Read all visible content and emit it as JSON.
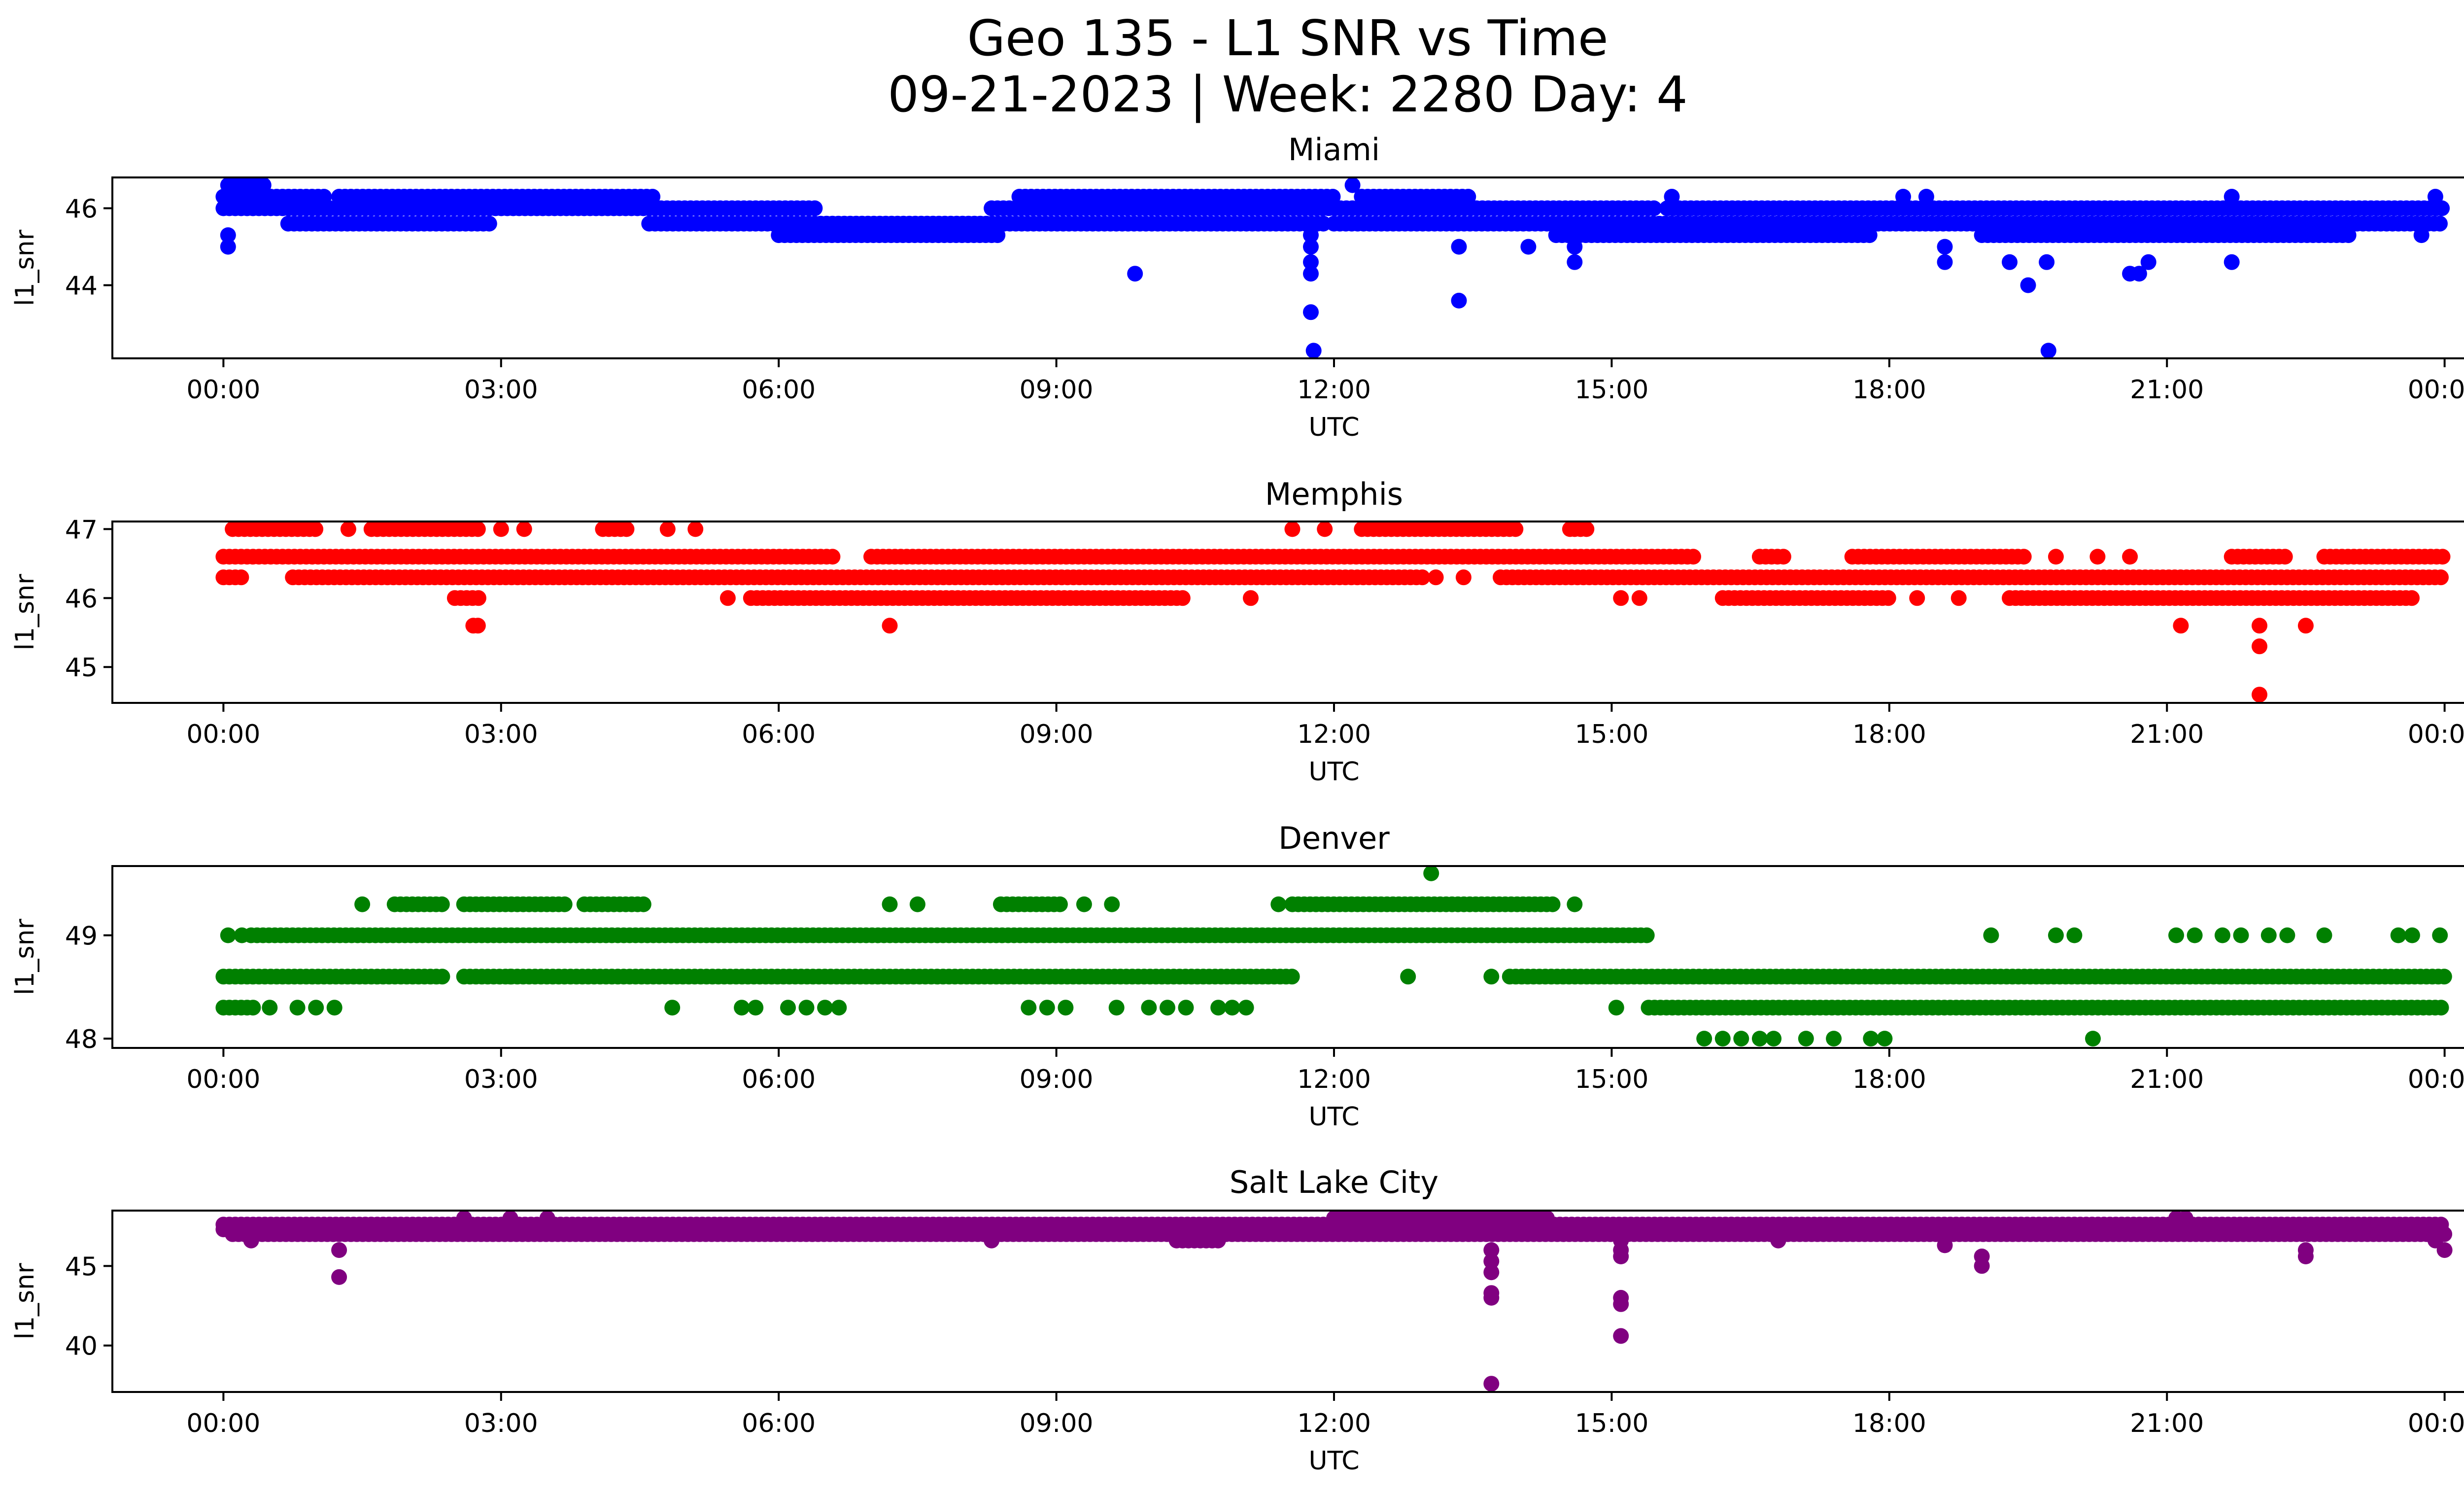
{
  "figure": {
    "title_line1": "Geo 135 - L1 SNR vs Time",
    "title_line2": "09-21-2023 | Week: 2280 Day: 4"
  },
  "chart_data": [
    {
      "type": "scatter",
      "title": "Miami",
      "xlabel": "UTC",
      "ylabel": "l1_snr",
      "color": "#0000ff",
      "xlim_hours": [
        -1.2,
        25.2
      ],
      "ylim": [
        42.1,
        46.8
      ],
      "xticks": [
        {
          "hour": 0,
          "label": "00:00"
        },
        {
          "hour": 3,
          "label": "03:00"
        },
        {
          "hour": 6,
          "label": "06:00"
        },
        {
          "hour": 9,
          "label": "09:00"
        },
        {
          "hour": 12,
          "label": "12:00"
        },
        {
          "hour": 15,
          "label": "15:00"
        },
        {
          "hour": 18,
          "label": "18:00"
        },
        {
          "hour": 21,
          "label": "21:00"
        },
        {
          "hour": 24,
          "label": "00:00"
        }
      ],
      "yticks": [
        {
          "value": 44,
          "label": "44"
        },
        {
          "value": 46,
          "label": "46"
        }
      ],
      "bands": [
        {
          "snr": 46.6,
          "from": 0.05,
          "to": 0.45
        },
        {
          "snr": 46.3,
          "from": 0.0,
          "to": 1.1
        },
        {
          "snr": 46.3,
          "from": 1.25,
          "to": 4.65
        },
        {
          "snr": 46.3,
          "from": 8.6,
          "to": 12.0
        },
        {
          "snr": 46.3,
          "from": 12.3,
          "to": 13.5
        },
        {
          "snr": 46.0,
          "from": 0.0,
          "to": 6.4
        },
        {
          "snr": 46.0,
          "from": 8.3,
          "to": 15.5
        },
        {
          "snr": 46.0,
          "from": 15.6,
          "to": 24.0
        },
        {
          "snr": 45.6,
          "from": 0.7,
          "to": 2.9
        },
        {
          "snr": 45.6,
          "from": 4.6,
          "to": 11.9
        },
        {
          "snr": 45.6,
          "from": 12.0,
          "to": 24.0
        },
        {
          "snr": 45.3,
          "from": 6.0,
          "to": 8.4
        },
        {
          "snr": 45.3,
          "from": 14.4,
          "to": 17.8
        },
        {
          "snr": 45.3,
          "from": 19.0,
          "to": 23.0
        }
      ],
      "points": [
        {
          "hour": 0.05,
          "snr": 45.3
        },
        {
          "hour": 0.05,
          "snr": 45.0
        },
        {
          "hour": 9.85,
          "snr": 44.3
        },
        {
          "hour": 11.75,
          "snr": 45.3
        },
        {
          "hour": 11.75,
          "snr": 45.0
        },
        {
          "hour": 11.75,
          "snr": 44.6
        },
        {
          "hour": 11.75,
          "snr": 44.3
        },
        {
          "hour": 11.75,
          "snr": 43.3
        },
        {
          "hour": 11.78,
          "snr": 42.3
        },
        {
          "hour": 12.2,
          "snr": 46.6
        },
        {
          "hour": 13.35,
          "snr": 45.0
        },
        {
          "hour": 13.35,
          "snr": 43.6
        },
        {
          "hour": 14.1,
          "snr": 45.0
        },
        {
          "hour": 14.6,
          "snr": 45.0
        },
        {
          "hour": 14.6,
          "snr": 44.6
        },
        {
          "hour": 15.65,
          "snr": 46.3
        },
        {
          "hour": 18.15,
          "snr": 46.3
        },
        {
          "hour": 18.4,
          "snr": 46.3
        },
        {
          "hour": 18.6,
          "snr": 45.0
        },
        {
          "hour": 18.6,
          "snr": 44.6
        },
        {
          "hour": 19.3,
          "snr": 44.6
        },
        {
          "hour": 19.5,
          "snr": 44.0
        },
        {
          "hour": 19.7,
          "snr": 44.6
        },
        {
          "hour": 19.72,
          "snr": 42.3
        },
        {
          "hour": 20.6,
          "snr": 44.3
        },
        {
          "hour": 20.7,
          "snr": 44.3
        },
        {
          "hour": 20.8,
          "snr": 44.6
        },
        {
          "hour": 21.7,
          "snr": 46.3
        },
        {
          "hour": 21.7,
          "snr": 44.6
        },
        {
          "hour": 23.9,
          "snr": 46.3
        },
        {
          "hour": 23.75,
          "snr": 45.3
        }
      ]
    },
    {
      "type": "scatter",
      "title": "Memphis",
      "xlabel": "UTC",
      "ylabel": "l1_snr",
      "color": "#ff0000",
      "xlim_hours": [
        -1.2,
        25.2
      ],
      "ylim": [
        44.48,
        47.11
      ],
      "xticks": [
        {
          "hour": 0,
          "label": "00:00"
        },
        {
          "hour": 3,
          "label": "03:00"
        },
        {
          "hour": 6,
          "label": "06:00"
        },
        {
          "hour": 9,
          "label": "09:00"
        },
        {
          "hour": 12,
          "label": "12:00"
        },
        {
          "hour": 15,
          "label": "15:00"
        },
        {
          "hour": 18,
          "label": "18:00"
        },
        {
          "hour": 21,
          "label": "21:00"
        },
        {
          "hour": 24,
          "label": "00:00"
        }
      ],
      "yticks": [
        {
          "value": 45,
          "label": "45"
        },
        {
          "value": 46,
          "label": "46"
        },
        {
          "value": 47,
          "label": "47"
        }
      ],
      "bands": [
        {
          "snr": 47.0,
          "from": 0.1,
          "to": 1.05
        },
        {
          "snr": 47.0,
          "from": 1.6,
          "to": 2.8
        },
        {
          "snr": 47.0,
          "from": 4.1,
          "to": 4.4
        },
        {
          "snr": 47.0,
          "from": 12.3,
          "to": 14.0
        },
        {
          "snr": 47.0,
          "from": 14.6,
          "to": 14.75
        },
        {
          "snr": 46.6,
          "from": 0.0,
          "to": 6.6
        },
        {
          "snr": 46.6,
          "from": 7.0,
          "to": 15.9
        },
        {
          "snr": 46.6,
          "from": 16.6,
          "to": 16.9
        },
        {
          "snr": 46.6,
          "from": 17.6,
          "to": 19.5
        },
        {
          "snr": 46.6,
          "from": 21.7,
          "to": 22.3
        },
        {
          "snr": 46.6,
          "from": 22.7,
          "to": 24.0
        },
        {
          "snr": 46.3,
          "from": 0.0,
          "to": 0.25
        },
        {
          "snr": 46.3,
          "from": 0.75,
          "to": 13.0
        },
        {
          "snr": 46.3,
          "from": 13.8,
          "to": 24.0
        },
        {
          "snr": 46.0,
          "from": 2.5,
          "to": 2.8
        },
        {
          "snr": 46.0,
          "from": 5.7,
          "to": 10.4
        },
        {
          "snr": 46.0,
          "from": 16.2,
          "to": 18.0
        },
        {
          "snr": 46.0,
          "from": 19.3,
          "to": 23.7
        }
      ],
      "points": [
        {
          "hour": 1.35,
          "snr": 47.0
        },
        {
          "hour": 3.0,
          "snr": 47.0
        },
        {
          "hour": 3.25,
          "snr": 47.0
        },
        {
          "hour": 4.8,
          "snr": 47.0
        },
        {
          "hour": 5.1,
          "snr": 47.0
        },
        {
          "hour": 11.55,
          "snr": 47.0
        },
        {
          "hour": 11.9,
          "snr": 47.0
        },
        {
          "hour": 14.55,
          "snr": 47.0
        },
        {
          "hour": 19.8,
          "snr": 46.6
        },
        {
          "hour": 20.25,
          "snr": 46.6
        },
        {
          "hour": 20.6,
          "snr": 46.6
        },
        {
          "hour": 13.1,
          "snr": 46.3
        },
        {
          "hour": 13.4,
          "snr": 46.3
        },
        {
          "hour": 5.45,
          "snr": 46.0
        },
        {
          "hour": 11.1,
          "snr": 46.0
        },
        {
          "hour": 15.1,
          "snr": 46.0
        },
        {
          "hour": 15.3,
          "snr": 46.0
        },
        {
          "hour": 18.3,
          "snr": 46.0
        },
        {
          "hour": 18.75,
          "snr": 46.0
        },
        {
          "hour": 2.7,
          "snr": 45.6
        },
        {
          "hour": 2.75,
          "snr": 45.6
        },
        {
          "hour": 7.2,
          "snr": 45.6
        },
        {
          "hour": 21.15,
          "snr": 45.6
        },
        {
          "hour": 22.0,
          "snr": 45.6
        },
        {
          "hour": 22.5,
          "snr": 45.6
        },
        {
          "hour": 22.0,
          "snr": 45.3
        },
        {
          "hour": 22.0,
          "snr": 44.6
        }
      ]
    },
    {
      "type": "scatter",
      "title": "Denver",
      "xlabel": "UTC",
      "ylabel": "l1_snr",
      "color": "#008000",
      "xlim_hours": [
        -1.2,
        25.2
      ],
      "ylim": [
        47.91,
        49.67
      ],
      "xticks": [
        {
          "hour": 0,
          "label": "00:00"
        },
        {
          "hour": 3,
          "label": "03:00"
        },
        {
          "hour": 6,
          "label": "06:00"
        },
        {
          "hour": 9,
          "label": "09:00"
        },
        {
          "hour": 12,
          "label": "12:00"
        },
        {
          "hour": 15,
          "label": "15:00"
        },
        {
          "hour": 18,
          "label": "18:00"
        },
        {
          "hour": 21,
          "label": "21:00"
        },
        {
          "hour": 24,
          "label": "00:00"
        }
      ],
      "yticks": [
        {
          "value": 48,
          "label": "48"
        },
        {
          "value": 49,
          "label": "49"
        }
      ],
      "bands": [
        {
          "snr": 49.3,
          "from": 1.85,
          "to": 2.4
        },
        {
          "snr": 49.3,
          "from": 2.6,
          "to": 3.7
        },
        {
          "snr": 49.3,
          "from": 3.9,
          "to": 4.6
        },
        {
          "snr": 49.3,
          "from": 8.4,
          "to": 9.1
        },
        {
          "snr": 49.3,
          "from": 11.55,
          "to": 14.4
        },
        {
          "snr": 49.0,
          "from": 0.3,
          "to": 15.4
        },
        {
          "snr": 48.6,
          "from": 0.0,
          "to": 2.4
        },
        {
          "snr": 48.6,
          "from": 2.6,
          "to": 11.6
        },
        {
          "snr": 48.6,
          "from": 13.9,
          "to": 24.0
        },
        {
          "snr": 48.3,
          "from": 0.0,
          "to": 0.35
        },
        {
          "snr": 48.3,
          "from": 15.4,
          "to": 24.0
        }
      ],
      "points": [
        {
          "hour": 0.05,
          "snr": 49.0
        },
        {
          "hour": 0.2,
          "snr": 49.0
        },
        {
          "hour": 1.5,
          "snr": 49.3
        },
        {
          "hour": 7.2,
          "snr": 49.3
        },
        {
          "hour": 7.5,
          "snr": 49.3
        },
        {
          "hour": 9.3,
          "snr": 49.3
        },
        {
          "hour": 9.6,
          "snr": 49.3
        },
        {
          "hour": 11.4,
          "snr": 49.3
        },
        {
          "hour": 14.6,
          "snr": 49.3
        },
        {
          "hour": 13.05,
          "snr": 49.6
        },
        {
          "hour": 3.1,
          "snr": 48.6
        },
        {
          "hour": 12.8,
          "snr": 48.6
        },
        {
          "hour": 13.7,
          "snr": 48.6
        },
        {
          "hour": 19.1,
          "snr": 49.0
        },
        {
          "hour": 19.8,
          "snr": 49.0
        },
        {
          "hour": 20.0,
          "snr": 49.0
        },
        {
          "hour": 21.1,
          "snr": 49.0
        },
        {
          "hour": 21.3,
          "snr": 49.0
        },
        {
          "hour": 21.6,
          "snr": 49.0
        },
        {
          "hour": 21.8,
          "snr": 49.0
        },
        {
          "hour": 22.1,
          "snr": 49.0
        },
        {
          "hour": 22.3,
          "snr": 49.0
        },
        {
          "hour": 22.7,
          "snr": 49.0
        },
        {
          "hour": 23.5,
          "snr": 49.0
        },
        {
          "hour": 23.65,
          "snr": 49.0
        },
        {
          "hour": 23.95,
          "snr": 49.0
        },
        {
          "hour": 0.5,
          "snr": 48.3
        },
        {
          "hour": 0.8,
          "snr": 48.3
        },
        {
          "hour": 1.0,
          "snr": 48.3
        },
        {
          "hour": 1.2,
          "snr": 48.3
        },
        {
          "hour": 4.85,
          "snr": 48.3
        },
        {
          "hour": 5.6,
          "snr": 48.3
        },
        {
          "hour": 5.75,
          "snr": 48.3
        },
        {
          "hour": 6.1,
          "snr": 48.3
        },
        {
          "hour": 6.3,
          "snr": 48.3
        },
        {
          "hour": 6.5,
          "snr": 48.3
        },
        {
          "hour": 6.65,
          "snr": 48.3
        },
        {
          "hour": 8.7,
          "snr": 48.3
        },
        {
          "hour": 8.9,
          "snr": 48.3
        },
        {
          "hour": 9.1,
          "snr": 48.3
        },
        {
          "hour": 9.65,
          "snr": 48.3
        },
        {
          "hour": 10.0,
          "snr": 48.3
        },
        {
          "hour": 10.2,
          "snr": 48.3
        },
        {
          "hour": 10.4,
          "snr": 48.3
        },
        {
          "hour": 10.75,
          "snr": 48.3
        },
        {
          "hour": 10.9,
          "snr": 48.3
        },
        {
          "hour": 11.05,
          "snr": 48.3
        },
        {
          "hour": 15.05,
          "snr": 48.3
        },
        {
          "hour": 16.0,
          "snr": 48.0
        },
        {
          "hour": 16.2,
          "snr": 48.0
        },
        {
          "hour": 16.4,
          "snr": 48.0
        },
        {
          "hour": 16.6,
          "snr": 48.0
        },
        {
          "hour": 16.75,
          "snr": 48.0
        },
        {
          "hour": 17.1,
          "snr": 48.0
        },
        {
          "hour": 17.4,
          "snr": 48.0
        },
        {
          "hour": 17.8,
          "snr": 48.0
        },
        {
          "hour": 17.95,
          "snr": 48.0
        },
        {
          "hour": 20.2,
          "snr": 48.0
        }
      ]
    },
    {
      "type": "scatter",
      "title": "Salt Lake City",
      "xlabel": "UTC",
      "ylabel": "l1_snr",
      "color": "#800080",
      "xlim_hours": [
        -1.2,
        25.2
      ],
      "ylim": [
        37.08,
        48.48
      ],
      "xticks": [
        {
          "hour": 0,
          "label": "00:00"
        },
        {
          "hour": 3,
          "label": "03:00"
        },
        {
          "hour": 6,
          "label": "06:00"
        },
        {
          "hour": 9,
          "label": "09:00"
        },
        {
          "hour": 12,
          "label": "12:00"
        },
        {
          "hour": 15,
          "label": "15:00"
        },
        {
          "hour": 18,
          "label": "18:00"
        },
        {
          "hour": 21,
          "label": "21:00"
        },
        {
          "hour": 24,
          "label": "00:00"
        }
      ],
      "yticks": [
        {
          "value": 40,
          "label": "40"
        },
        {
          "value": 45,
          "label": "45"
        }
      ],
      "bands": [
        {
          "snr": 47.6,
          "from": 0.0,
          "to": 24.0
        },
        {
          "snr": 47.3,
          "from": 0.0,
          "to": 24.0
        },
        {
          "snr": 47.0,
          "from": 0.1,
          "to": 24.0
        },
        {
          "snr": 48.0,
          "from": 12.0,
          "to": 14.3
        },
        {
          "snr": 46.6,
          "from": 10.3,
          "to": 10.8
        }
      ],
      "points": [
        {
          "hour": 0.3,
          "snr": 46.6
        },
        {
          "hour": 1.25,
          "snr": 46.0
        },
        {
          "hour": 1.25,
          "snr": 44.3
        },
        {
          "hour": 2.6,
          "snr": 48.0
        },
        {
          "hour": 3.1,
          "snr": 48.0
        },
        {
          "hour": 3.5,
          "snr": 48.0
        },
        {
          "hour": 8.3,
          "snr": 46.6
        },
        {
          "hour": 13.7,
          "snr": 46.0
        },
        {
          "hour": 13.7,
          "snr": 45.3
        },
        {
          "hour": 13.7,
          "snr": 44.6
        },
        {
          "hour": 13.7,
          "snr": 43.3
        },
        {
          "hour": 13.7,
          "snr": 43.0
        },
        {
          "hour": 13.7,
          "snr": 37.6
        },
        {
          "hour": 15.1,
          "snr": 46.6
        },
        {
          "hour": 15.1,
          "snr": 46.0
        },
        {
          "hour": 15.1,
          "snr": 45.6
        },
        {
          "hour": 15.1,
          "snr": 43.0
        },
        {
          "hour": 15.1,
          "snr": 42.6
        },
        {
          "hour": 15.1,
          "snr": 40.6
        },
        {
          "hour": 16.8,
          "snr": 46.6
        },
        {
          "hour": 18.6,
          "snr": 46.3
        },
        {
          "hour": 19.0,
          "snr": 45.6
        },
        {
          "hour": 19.0,
          "snr": 45.0
        },
        {
          "hour": 21.1,
          "snr": 48.0
        },
        {
          "hour": 21.2,
          "snr": 48.0
        },
        {
          "hour": 22.5,
          "snr": 46.0
        },
        {
          "hour": 22.5,
          "snr": 45.6
        },
        {
          "hour": 23.9,
          "snr": 46.6
        },
        {
          "hour": 24.0,
          "snr": 46.0
        }
      ]
    }
  ]
}
